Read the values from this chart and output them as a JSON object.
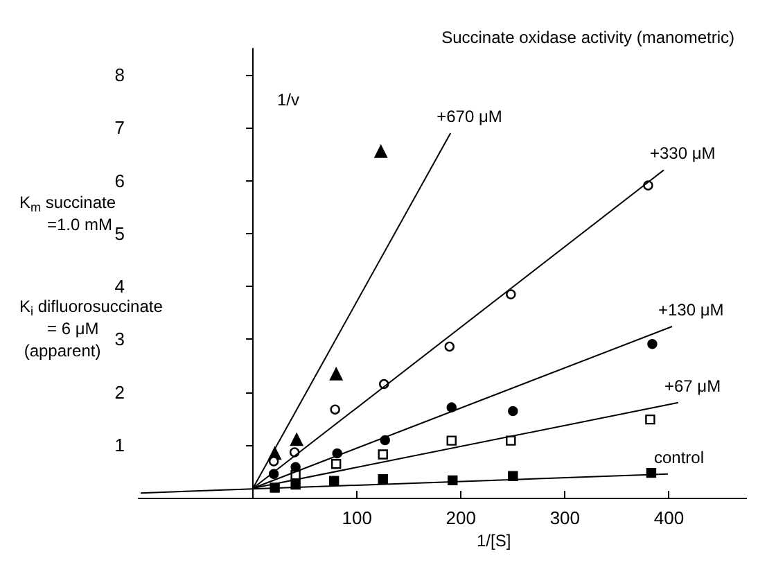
{
  "chart_data": {
    "type": "scatter",
    "title": "Succinate oxidase activity (manometric)",
    "xlabel": "1/[S]",
    "ylabel": "1/v",
    "annotations": [
      "K$_{m}$ succinate\n      =1.0 mM",
      "K$_{i}$ difluorosuccinate\n      = 6 μM\n (apparent)"
    ],
    "xlim": [
      -110,
      475
    ],
    "ylim": [
      0,
      8.5
    ],
    "xticks": [
      100,
      200,
      300,
      400
    ],
    "yticks": [
      1,
      2,
      3,
      4,
      5,
      6,
      7,
      8
    ],
    "grid": false,
    "legend": false,
    "series": [
      {
        "marker": "triangle",
        "color": "#000000",
        "x": [
          21,
          42,
          80,
          123
        ],
        "values": [
          0.84,
          1.1,
          2.34,
          6.55
        ]
      },
      {
        "marker": "circle",
        "color": "#ffffff",
        "x": [
          20,
          40,
          79,
          126,
          189,
          248,
          380
        ],
        "values": [
          0.69,
          0.86,
          1.67,
          2.15,
          2.86,
          3.85,
          5.91
        ]
      },
      {
        "marker": "circle",
        "color": "#000000",
        "x": [
          20,
          41,
          81,
          127,
          191,
          250,
          384
        ],
        "values": [
          0.45,
          0.58,
          0.84,
          1.09,
          1.71,
          1.64,
          2.91
        ]
      },
      {
        "marker": "square",
        "color": "#ffffff",
        "x": [
          41,
          80,
          125,
          191,
          248,
          382
        ],
        "values": [
          0.43,
          0.64,
          0.82,
          1.08,
          1.08,
          1.48
        ]
      },
      {
        "marker": "square",
        "color": "#000000",
        "x": [
          21,
          41,
          78,
          125,
          192,
          250,
          383
        ],
        "values": [
          0.19,
          0.25,
          0.32,
          0.35,
          0.33,
          0.41,
          0.47
        ]
      },
      {
        "type": "line",
        "name": "+670 μM",
        "color": "#000000",
        "x": [
          0,
          190
        ],
        "values": [
          0.18,
          6.9
        ]
      },
      {
        "type": "line",
        "name": "+330 μM",
        "color": "#000000",
        "x": [
          0,
          395
        ],
        "values": [
          0.18,
          6.2
        ]
      },
      {
        "type": "line",
        "name": "+130 μM",
        "color": "#000000",
        "x": [
          0,
          403
        ],
        "values": [
          0.18,
          3.24
        ]
      },
      {
        "type": "line",
        "name": "+67 μM",
        "color": "#000000",
        "x": [
          0,
          409
        ],
        "values": [
          0.18,
          1.8
        ]
      },
      {
        "type": "line",
        "name": "control",
        "color": "#000000",
        "x": [
          -108,
          399
        ],
        "values": [
          0.09,
          0.45
        ]
      }
    ]
  }
}
